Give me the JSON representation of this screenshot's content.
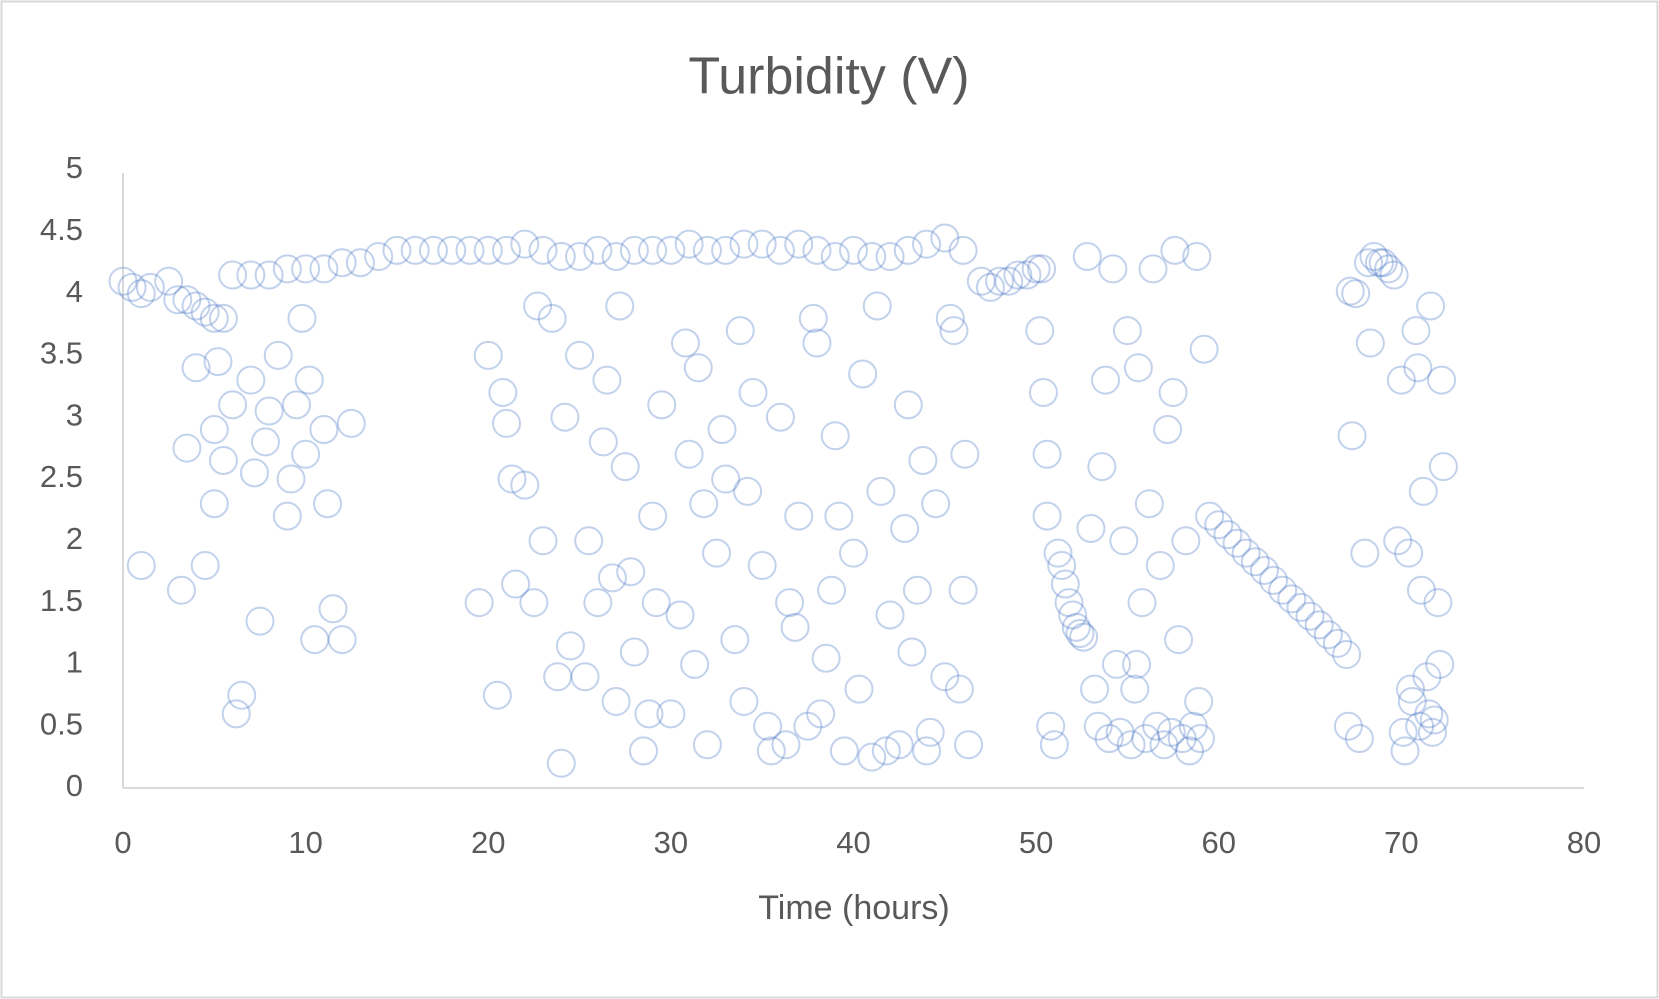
{
  "chart_data": {
    "type": "scatter",
    "title": "Turbidity (V)",
    "x_label": "Time (hours)",
    "color": "#4472c4",
    "xlim": [
      0,
      80
    ],
    "xticks": [
      0,
      10,
      20,
      30,
      40,
      50,
      60,
      70,
      80
    ],
    "ylim": [
      0,
      5
    ],
    "yticks": [
      0,
      0.5,
      1,
      1.5,
      2,
      2.5,
      3,
      3.5,
      4,
      4.5,
      5
    ],
    "grid": false,
    "x": [
      0,
      0.5,
      1,
      1.5,
      2.5,
      3,
      3.5,
      4,
      4.5,
      5,
      5.5,
      6,
      7,
      8,
      9,
      10,
      11,
      12,
      13,
      14,
      15,
      16,
      17,
      18,
      19,
      20,
      21,
      22,
      23,
      24,
      25,
      26,
      27,
      28,
      29,
      30,
      31,
      32,
      33,
      34,
      35,
      36,
      37,
      38,
      39,
      40,
      41,
      42,
      43,
      44,
      45,
      46,
      47,
      47.5,
      48,
      48.5,
      49,
      49.5,
      50,
      50.3,
      1,
      3.5,
      4,
      4.5,
      5,
      5.5,
      6,
      6.5,
      7,
      7.5,
      8,
      8.5,
      9,
      9.5,
      10,
      10.5,
      11,
      11.5,
      12,
      12.5,
      3.2,
      5,
      6.2,
      7.2,
      9.2,
      10.2,
      11.2,
      5.2,
      7.8,
      9.8,
      19.5,
      20,
      20.5,
      21,
      21.5,
      22,
      22.5,
      23,
      23.5,
      24,
      24.5,
      25,
      25.5,
      26,
      26.5,
      27,
      27.5,
      28,
      28.5,
      29,
      29.5,
      30,
      30.5,
      31,
      31.5,
      32,
      32.5,
      33,
      33.5,
      34,
      34.5,
      35,
      35.5,
      36,
      36.5,
      37,
      37.5,
      38,
      38.5,
      39,
      39.5,
      40,
      40.5,
      41,
      41.5,
      42,
      42.5,
      43,
      43.5,
      44,
      44.5,
      45,
      45.5,
      46,
      46.3,
      20.8,
      22.7,
      25.3,
      27.8,
      30.8,
      32.8,
      35.3,
      37.8,
      40.3,
      42.8,
      45.3,
      21.3,
      23.8,
      26.3,
      28.8,
      31.3,
      33.8,
      36.3,
      38.8,
      41.3,
      43.8,
      46.1,
      24.2,
      29.2,
      34.2,
      39.2,
      44.2,
      27.2,
      36.8,
      41.8,
      45.8,
      26.8,
      31.8,
      38.2,
      43.2,
      50.2,
      50.4,
      50.6,
      50.8,
      51,
      51.2,
      51.4,
      51.6,
      51.8,
      52,
      52.2,
      52.4,
      52.6,
      52.8,
      53.4,
      53.6,
      53.8,
      54,
      54.2,
      54.4,
      54.6,
      54.8,
      55,
      55.2,
      55.4,
      55.6,
      55.8,
      56,
      56.2,
      56.4,
      56.6,
      56.8,
      57,
      57.2,
      57.4,
      57.6,
      57.8,
      58,
      58.2,
      58.4,
      58.6,
      58.8,
      59,
      59.2,
      53,
      53.2,
      55.5,
      57.5,
      58.9,
      50.6,
      59.5,
      60,
      60.5,
      61,
      61.5,
      62,
      62.5,
      63,
      63.5,
      64,
      64.5,
      65,
      65.5,
      66,
      66.5,
      67,
      67.2,
      67.5,
      67.7,
      68,
      68.2,
      68.5,
      68.8,
      69,
      69.3,
      69.6,
      70,
      67.3,
      68.3,
      67.1,
      70.2,
      70.4,
      70.6,
      70.8,
      71,
      71.2,
      71.4,
      71.6,
      71.8,
      72,
      72.2,
      70.5,
      71.1,
      71.7,
      72.3,
      70.9,
      71.5,
      72.1,
      69.8,
      70.1
    ],
    "values": [
      4.1,
      4.05,
      4.0,
      4.05,
      4.1,
      3.95,
      3.95,
      3.9,
      3.85,
      3.8,
      3.8,
      4.15,
      4.15,
      4.15,
      4.2,
      4.2,
      4.2,
      4.25,
      4.25,
      4.3,
      4.35,
      4.35,
      4.35,
      4.35,
      4.35,
      4.35,
      4.35,
      4.4,
      4.35,
      4.3,
      4.3,
      4.35,
      4.3,
      4.35,
      4.35,
      4.35,
      4.4,
      4.35,
      4.35,
      4.4,
      4.4,
      4.35,
      4.4,
      4.35,
      4.3,
      4.35,
      4.3,
      4.3,
      4.35,
      4.4,
      4.45,
      4.35,
      4.1,
      4.05,
      4.1,
      4.1,
      4.15,
      4.15,
      4.2,
      4.2,
      1.8,
      2.75,
      3.4,
      1.8,
      2.9,
      2.65,
      3.1,
      0.75,
      3.3,
      1.35,
      3.05,
      3.5,
      2.2,
      3.1,
      2.7,
      1.2,
      2.9,
      1.45,
      1.2,
      2.95,
      1.6,
      2.3,
      0.6,
      2.55,
      2.5,
      3.3,
      2.3,
      3.45,
      2.8,
      3.8,
      1.5,
      3.5,
      0.75,
      2.95,
      1.65,
      2.45,
      1.5,
      2.0,
      3.8,
      0.2,
      1.15,
      3.5,
      2.0,
      1.5,
      3.3,
      0.7,
      2.6,
      1.1,
      0.3,
      2.2,
      3.1,
      0.6,
      1.4,
      2.7,
      3.4,
      0.35,
      1.9,
      2.5,
      1.2,
      0.7,
      3.2,
      1.8,
      0.3,
      3.0,
      1.5,
      2.2,
      0.5,
      3.6,
      1.05,
      2.85,
      0.3,
      1.9,
      3.35,
      0.25,
      2.4,
      1.4,
      0.35,
      3.1,
      1.6,
      0.3,
      2.3,
      0.9,
      3.7,
      1.6,
      0.35,
      3.2,
      3.9,
      0.9,
      1.75,
      3.6,
      2.9,
      0.5,
      3.8,
      0.8,
      2.1,
      3.8,
      2.5,
      0.9,
      2.8,
      0.6,
      1.0,
      3.7,
      0.35,
      1.6,
      3.9,
      2.65,
      2.7,
      3.0,
      1.5,
      2.4,
      2.2,
      0.45,
      3.9,
      1.3,
      0.3,
      0.8,
      1.7,
      2.3,
      0.6,
      1.1,
      3.7,
      3.2,
      2.7,
      0.5,
      0.35,
      1.9,
      1.8,
      1.65,
      1.5,
      1.4,
      1.3,
      1.25,
      1.22,
      4.3,
      0.5,
      2.6,
      3.3,
      0.4,
      4.2,
      1.0,
      0.45,
      2.0,
      3.7,
      0.35,
      0.8,
      3.4,
      1.5,
      0.4,
      2.3,
      4.2,
      0.5,
      1.8,
      0.35,
      2.9,
      0.45,
      4.35,
      1.2,
      0.4,
      2.0,
      0.3,
      0.5,
      4.3,
      0.4,
      3.55,
      2.1,
      0.8,
      1.0,
      3.2,
      0.7,
      2.2,
      2.2,
      2.13,
      2.05,
      1.98,
      1.9,
      1.83,
      1.76,
      1.68,
      1.6,
      1.53,
      1.46,
      1.39,
      1.32,
      1.24,
      1.17,
      1.08,
      4.02,
      4.0,
      0.4,
      1.9,
      4.25,
      4.3,
      4.25,
      4.25,
      4.2,
      4.15,
      3.3,
      2.85,
      3.6,
      0.5,
      0.3,
      1.9,
      0.7,
      3.7,
      0.5,
      2.4,
      0.9,
      3.9,
      0.55,
      1.5,
      3.3,
      0.8,
      1.6,
      0.45,
      2.6,
      3.4,
      0.6,
      1.0,
      2.0,
      0.45
    ]
  }
}
